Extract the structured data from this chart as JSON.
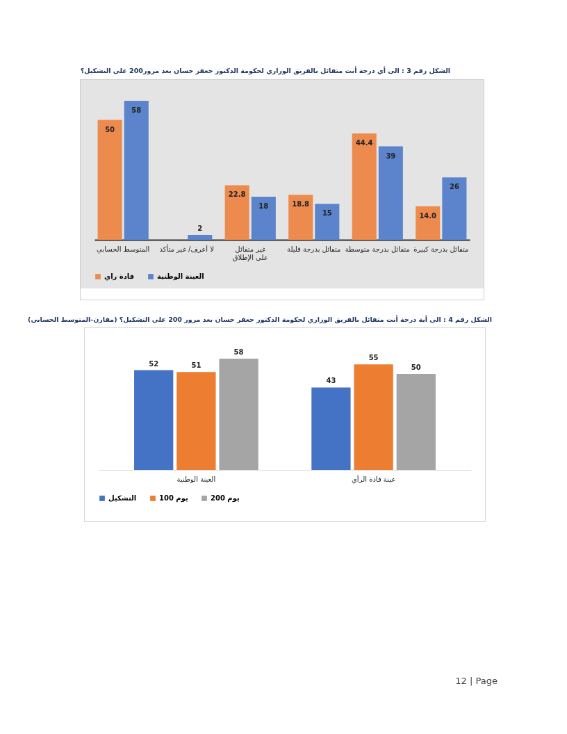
{
  "chart_data": [
    {
      "type": "bar",
      "title": "الشكل رقم 3 : الى أي درجة أنت متفائل بالفريق الوزاري لحكومة الدكتور جعفر حسان بعد مرور200 على التشكيل؟",
      "categories": [
        "المتوسط الحسابي",
        "لا أعرف/ غير متأكد",
        "غير متفائل على الإطلاق",
        "متفائل بدرجة قليلة",
        "متفائل بدرجة متوسطة",
        "متفائل بدرجة كبيرة"
      ],
      "series": [
        {
          "name": "قادة راي",
          "color": "#ed8b4e",
          "values": [
            50,
            null,
            22.8,
            18.8,
            44.4,
            14.0
          ],
          "value_labels": [
            "50",
            null,
            "22.8",
            "18.8",
            "44.4",
            "14.0"
          ]
        },
        {
          "name": "العينة الوطنية",
          "color": "#5b84cc",
          "values": [
            58,
            2,
            18,
            15,
            39,
            26
          ],
          "value_labels": [
            "58",
            "2",
            "18",
            "15",
            "39",
            "26"
          ]
        }
      ],
      "legend": "bottom",
      "grid": false
    },
    {
      "type": "bar",
      "title": "الشكل رقم 4 : الى أية درجة أنت متفائل بالفريق الوزاري لحكومة الدكتور جعفر حسان بعد مرور 200 على التشكيل؟ (مقارن-المتوسط الحسابي)",
      "categories": [
        "العينة الوطنية",
        "عينة قادة الرأي"
      ],
      "series": [
        {
          "name": "التشكيل",
          "color": "#4472c4",
          "values": [
            52,
            43
          ]
        },
        {
          "name": "100 يوم",
          "color": "#ed7d31",
          "values": [
            51,
            55
          ]
        },
        {
          "name": "200 يوم",
          "color": "#a5a5a5",
          "values": [
            58,
            50
          ]
        }
      ],
      "data_labels": true,
      "legend": "bottom",
      "grid": false,
      "annotations": [
        "12 | Page"
      ]
    }
  ]
}
